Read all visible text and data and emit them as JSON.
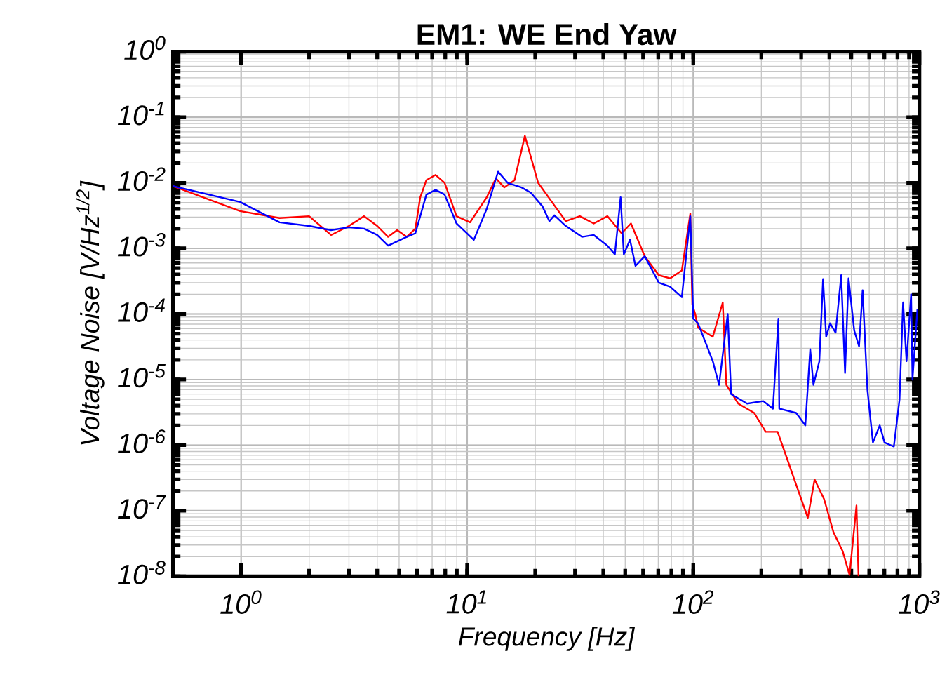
{
  "chart_data": {
    "type": "line",
    "title": "EM1: WE End Yaw",
    "xlabel": "Frequency [Hz]",
    "ylabel": "Voltage Noise [V/Hz$^{1/2}$]",
    "log": "xy",
    "grid": true,
    "xlim": [
      0.5,
      1000
    ],
    "ylim": [
      1e-08,
      1
    ],
    "xticks": [
      {
        "value": 1,
        "label": "10$^{0}$"
      },
      {
        "value": 10,
        "label": "10$^{1}$"
      },
      {
        "value": 100,
        "label": "10$^{2}$"
      },
      {
        "value": 1000,
        "label": "10$^{3}$"
      }
    ],
    "yticks": [
      {
        "value": 1e-08,
        "label": "10$^{-8}$"
      },
      {
        "value": 1e-07,
        "label": "10$^{-7}$"
      },
      {
        "value": 1e-06,
        "label": "10$^{-6}$"
      },
      {
        "value": 1e-05,
        "label": "10$^{-5}$"
      },
      {
        "value": 0.0001,
        "label": "10$^{-4}$"
      },
      {
        "value": 0.001,
        "label": "10$^{-3}$"
      },
      {
        "value": 0.01,
        "label": "10$^{-2}$"
      },
      {
        "value": 0.1,
        "label": "10$^{-1}$"
      },
      {
        "value": 1,
        "label": "10$^{0}$"
      }
    ],
    "series": [
      {
        "color": "#ff0000",
        "x": [
          0.5,
          0.99,
          1.48,
          2.0,
          2.5,
          3.0,
          3.5,
          4.0,
          4.47,
          4.9,
          5.4,
          5.9,
          6.2,
          6.6,
          7.25,
          7.95,
          8.97,
          10.3,
          12.2,
          13.4,
          14.6,
          16.2,
          18.0,
          20.6,
          23.7,
          27.3,
          31.5,
          36.3,
          41.7,
          48.2,
          53,
          61,
          70.4,
          79,
          89,
          97,
          99,
          102,
          105,
          122,
          135,
          140,
          158,
          186,
          209,
          236,
          253,
          285,
          321,
          344,
          379,
          417,
          458,
          491,
          527,
          538
        ],
        "values": [
          0.0089,
          0.0037,
          0.0029,
          0.0031,
          0.0016,
          0.0022,
          0.0031,
          0.0022,
          0.0015,
          0.0019,
          0.0015,
          0.002,
          0.006,
          0.011,
          0.0132,
          0.01,
          0.0031,
          0.0025,
          0.006,
          0.0117,
          0.0085,
          0.011,
          0.052,
          0.01,
          0.0051,
          0.0026,
          0.0031,
          0.0024,
          0.0031,
          0.0017,
          0.0024,
          0.00076,
          0.00039,
          0.00035,
          0.00046,
          0.0034,
          0.00014,
          0.0001,
          6.2e-05,
          4.5e-05,
          0.00015,
          8.3e-06,
          4.3e-06,
          3.1e-06,
          1.6e-06,
          1.6e-06,
          8.1e-07,
          2.5e-07,
          7.8e-08,
          3e-07,
          1.5e-07,
          4.7e-08,
          2.4e-08,
          1.05e-08,
          1.2e-07,
          1e-08
        ]
      },
      {
        "color": "#0000ff",
        "x": [
          0.5,
          0.99,
          1.48,
          2.0,
          2.5,
          3.0,
          3.5,
          4.0,
          4.47,
          5.4,
          5.9,
          6.6,
          7.25,
          7.95,
          8.97,
          10.7,
          12.2,
          13.7,
          15.1,
          17.4,
          19.1,
          21.5,
          23.1,
          24.3,
          27.3,
          32.2,
          36.3,
          41.7,
          45,
          47.7,
          49.3,
          52.5,
          55.5,
          61,
          70.4,
          79,
          89,
          97,
          100,
          105,
          122,
          130,
          142,
          147,
          173,
          204,
          225,
          238,
          240,
          285,
          313,
          329,
          340,
          361,
          375,
          387,
          403,
          426,
          451,
          469,
          486,
          515,
          541,
          561,
          589,
          623,
          668,
          701,
          771,
          817,
          847,
          877,
          919,
          932,
          980
        ],
        "values": [
          0.0089,
          0.0051,
          0.0025,
          0.0022,
          0.0019,
          0.0021,
          0.002,
          0.0016,
          0.0011,
          0.0015,
          0.0017,
          0.0066,
          0.0078,
          0.0066,
          0.0024,
          0.00135,
          0.004,
          0.0148,
          0.01,
          0.0085,
          0.0071,
          0.0044,
          0.0026,
          0.0032,
          0.0022,
          0.0015,
          0.0016,
          0.0011,
          0.00081,
          0.006,
          0.00081,
          0.00135,
          0.00054,
          0.00076,
          0.0003,
          0.00026,
          0.00018,
          0.0031,
          8.5e-05,
          7.2e-05,
          1.9e-05,
          8.3e-06,
          0.0001,
          6e-06,
          4.3e-06,
          4.7e-06,
          3.6e-06,
          8.5e-05,
          3.6e-06,
          3.1e-06,
          2e-06,
          2.9e-05,
          8.3e-06,
          1.9e-05,
          0.00034,
          4.5e-05,
          7.2e-05,
          5.2e-05,
          0.00039,
          1.26e-05,
          0.00035,
          5.6e-05,
          3.2e-05,
          0.00023,
          7e-06,
          1.1e-06,
          2e-06,
          1.1e-06,
          9.5e-07,
          5e-06,
          0.00015,
          1.9e-05,
          0.0002,
          1e-05,
          0.00012
        ]
      }
    ]
  }
}
